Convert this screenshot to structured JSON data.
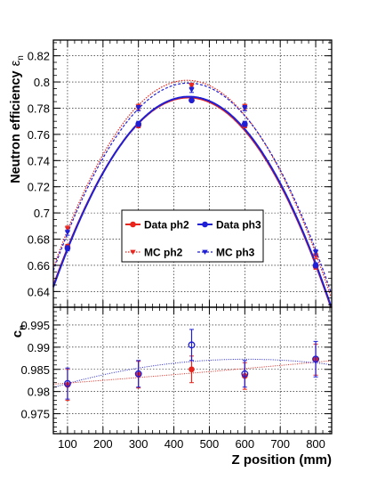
{
  "chart_data": [
    {
      "type": "scatter",
      "panel": "top",
      "ylabel": "Neutron efficiency",
      "ylabel_symbol": "ε",
      "ylabel_subscript": "n",
      "xlim": [
        60,
        845
      ],
      "ylim": [
        0.628,
        0.832
      ],
      "yticks": [
        "0.64",
        "0.66",
        "0.68",
        "0.7",
        "0.72",
        "0.74",
        "0.76",
        "0.78",
        "0.8",
        "0.82"
      ],
      "grid": true,
      "legend_position": "center",
      "series": [
        {
          "name": "Data ph2",
          "color": "#e8241c",
          "marker": "circle",
          "line": "solid",
          "x": [
            100,
            300,
            450,
            600,
            800
          ],
          "y": [
            0.674,
            0.767,
            0.786,
            0.767,
            0.659
          ],
          "err": [
            0.002,
            0.002,
            0.001,
            0.002,
            0.002
          ]
        },
        {
          "name": "MC ph2",
          "color": "#e8241c",
          "marker": "triangle-down",
          "line": "dotted",
          "x": [
            100,
            300,
            450,
            600,
            800
          ],
          "y": [
            0.688,
            0.781,
            0.797,
            0.781,
            0.667
          ],
          "err": [
            0.002,
            0.002,
            0.002,
            0.002,
            0.002
          ]
        },
        {
          "name": "Data ph3",
          "color": "#1f1fd6",
          "marker": "circle",
          "line": "solid",
          "x": [
            100,
            300,
            450,
            600,
            800
          ],
          "y": [
            0.673,
            0.768,
            0.786,
            0.768,
            0.66
          ],
          "err": [
            0.002,
            0.002,
            0.001,
            0.002,
            0.002
          ]
        },
        {
          "name": "MC ph3",
          "color": "#1f1fd6",
          "marker": "triangle-down",
          "line": "dashed",
          "x": [
            100,
            300,
            450,
            600,
            800
          ],
          "y": [
            0.685,
            0.78,
            0.794,
            0.78,
            0.67
          ],
          "err": [
            0.002,
            0.002,
            0.002,
            0.002,
            0.002
          ]
        }
      ]
    },
    {
      "type": "scatter",
      "panel": "bottom",
      "ylabel": "c",
      "ylabel_subscript": "n",
      "xlabel": "Z position (mm)",
      "xlim": [
        60,
        845
      ],
      "ylim": [
        0.9705,
        0.999
      ],
      "xticks": [
        "100",
        "200",
        "300",
        "400",
        "500",
        "600",
        "700",
        "800"
      ],
      "yticks": [
        "0.975",
        "0.98",
        "0.985",
        "0.99",
        "0.995"
      ],
      "grid": true,
      "series": [
        {
          "name": "ph2",
          "color": "#e8241c",
          "marker": "circle",
          "line": "dotted",
          "x": [
            100,
            300,
            450,
            600,
            800
          ],
          "y": [
            0.9815,
            0.9838,
            0.985,
            0.9835,
            0.9872
          ],
          "err": [
            0.0035,
            0.003,
            0.003,
            0.003,
            0.0035
          ]
        },
        {
          "name": "ph3",
          "color": "#1f1fd6",
          "marker": "circle-open",
          "line": "dotted",
          "x": [
            100,
            300,
            450,
            600,
            800
          ],
          "y": [
            0.9818,
            0.984,
            0.9905,
            0.984,
            0.9873
          ],
          "err": [
            0.0035,
            0.003,
            0.0035,
            0.003,
            0.004
          ]
        }
      ]
    }
  ]
}
